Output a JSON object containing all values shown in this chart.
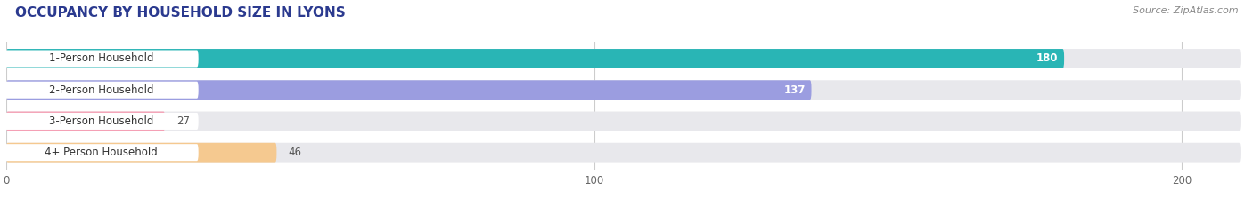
{
  "title": "OCCUPANCY BY HOUSEHOLD SIZE IN LYONS",
  "source": "Source: ZipAtlas.com",
  "categories": [
    "1-Person Household",
    "2-Person Household",
    "3-Person Household",
    "4+ Person Household"
  ],
  "values": [
    180,
    137,
    27,
    46
  ],
  "bar_colors": [
    "#29b5b5",
    "#9b9de0",
    "#f4a0b5",
    "#f5c990"
  ],
  "label_colors": [
    "white",
    "white",
    "#555555",
    "#555555"
  ],
  "xlim": [
    0,
    210
  ],
  "xticks": [
    0,
    100,
    200
  ],
  "background_color": "#ffffff",
  "bar_bg_color": "#e8e8ec",
  "figsize": [
    14.06,
    2.33
  ],
  "dpi": 100,
  "title_color": "#2b3a8f",
  "source_color": "#888888"
}
